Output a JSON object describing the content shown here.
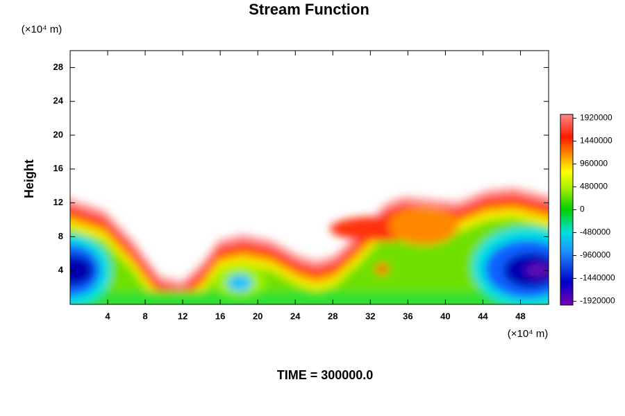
{
  "chart_data": {
    "type": "contour",
    "title": "Stream Function",
    "y_label": "Height",
    "y_unit": "(×10⁴ m)",
    "x_unit": "(×10⁴ m)",
    "footer": "TIME = 300000.0",
    "xlim": [
      0,
      51
    ],
    "xticks": [
      4,
      8,
      12,
      16,
      20,
      24,
      28,
      32,
      36,
      40,
      44,
      48
    ],
    "ylim": [
      0,
      30
    ],
    "yticks": [
      4,
      8,
      12,
      16,
      20,
      24,
      28
    ],
    "colorbar": {
      "lim": [
        -2000000,
        2000000
      ],
      "ticks": [
        1920000,
        1440000,
        960000,
        480000,
        0,
        -480000,
        -960000,
        -1440000,
        -1920000
      ]
    }
  }
}
